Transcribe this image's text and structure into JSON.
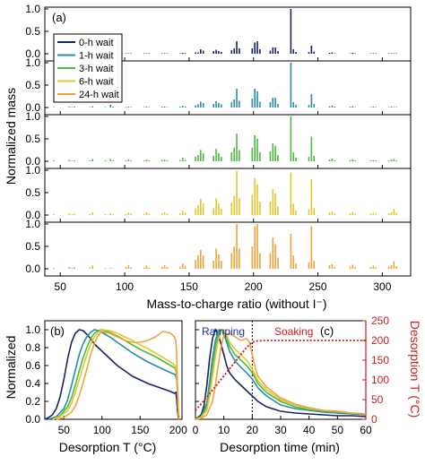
{
  "figure": {
    "panel_a_label": "(a)",
    "panel_b_label": "(b)",
    "panel_c_label": "(c)",
    "a_ylabel": "Normalized mass",
    "a_xlabel": "Mass-to-charge ratio (without I⁻)",
    "b_ylabel": "Normalized",
    "b_xlabel": "Desorption T (°C)",
    "c_xlabel": "Desorption time (min)",
    "c_y2label": "Desorption T (°C)",
    "ramping_label": "Ramping",
    "soaking_label": "Soaking",
    "colors": {
      "0-h wait": "#1a2461",
      "1-h wait": "#2b8cb0",
      "3-h wait": "#4cbb3f",
      "6-h wait": "#e6c62e",
      "24-h wait": "#f2a33a",
      "desorption_T": "#cc1d1d"
    }
  },
  "chart_data": [
    {
      "type": "bar",
      "panel": "(a)",
      "layout": "five stacked spectra sharing x axis",
      "xlabel": "Mass-to-charge ratio (without I⁻)",
      "ylabel": "Normalized mass",
      "xlim": [
        38,
        322
      ],
      "xticks": [
        50,
        100,
        150,
        200,
        250,
        300
      ],
      "ylim": [
        0,
        1.0
      ],
      "yticks": [
        0.0,
        0.5,
        1.0
      ],
      "legend": {
        "placement": "top-left",
        "entries": [
          "0-h wait",
          "1-h wait",
          "3-h wait",
          "6-h wait",
          "24-h wait"
        ]
      },
      "x": [
        45,
        57,
        59,
        61,
        73,
        75,
        85,
        89,
        91,
        101,
        103,
        105,
        115,
        117,
        119,
        129,
        131,
        133,
        143,
        145,
        147,
        155,
        157,
        159,
        161,
        169,
        171,
        173,
        175,
        183,
        185,
        187,
        189,
        199,
        201,
        203,
        205,
        213,
        215,
        217,
        219,
        229,
        231,
        233,
        243,
        245,
        247,
        259,
        261,
        263,
        275,
        277,
        279,
        291,
        293,
        295,
        305,
        307,
        309,
        311
      ],
      "series": [
        {
          "name": "0-h wait",
          "values": [
            0.01,
            0.02,
            0.01,
            0.01,
            0.01,
            0.02,
            0.01,
            0.03,
            0.01,
            0.01,
            0.01,
            0.01,
            0.01,
            0.01,
            0.01,
            0.01,
            0.01,
            0.01,
            0.01,
            0.02,
            0.01,
            0.03,
            0.03,
            0.1,
            0.07,
            0.06,
            0.09,
            0.06,
            0.04,
            0.08,
            0.12,
            0.28,
            0.12,
            0.12,
            0.25,
            0.28,
            0.1,
            0.07,
            0.14,
            0.14,
            0.06,
            1.0,
            0.1,
            0.04,
            0.04,
            0.18,
            0.05,
            0.02,
            0.03,
            0.01,
            0.01,
            0.02,
            0.01,
            0.01,
            0.01,
            0.01,
            0.01,
            0.01,
            0.01,
            0.01
          ]
        },
        {
          "name": "1-h wait",
          "values": [
            0.01,
            0.02,
            0.01,
            0.02,
            0.01,
            0.03,
            0.01,
            0.06,
            0.02,
            0.01,
            0.02,
            0.01,
            0.01,
            0.02,
            0.01,
            0.02,
            0.02,
            0.01,
            0.02,
            0.04,
            0.02,
            0.05,
            0.07,
            0.13,
            0.1,
            0.08,
            0.14,
            0.1,
            0.07,
            0.12,
            0.18,
            0.42,
            0.15,
            0.2,
            0.42,
            0.36,
            0.13,
            0.12,
            0.22,
            0.22,
            0.08,
            1.0,
            0.12,
            0.06,
            0.06,
            0.3,
            0.08,
            0.03,
            0.04,
            0.02,
            0.02,
            0.03,
            0.01,
            0.01,
            0.02,
            0.01,
            0.01,
            0.02,
            0.01,
            0.01
          ]
        },
        {
          "name": "3-h wait",
          "values": [
            0.02,
            0.03,
            0.01,
            0.02,
            0.02,
            0.05,
            0.02,
            0.05,
            0.02,
            0.02,
            0.04,
            0.02,
            0.02,
            0.04,
            0.02,
            0.03,
            0.04,
            0.02,
            0.03,
            0.08,
            0.03,
            0.1,
            0.14,
            0.25,
            0.18,
            0.12,
            0.28,
            0.18,
            0.1,
            0.2,
            0.3,
            0.62,
            0.25,
            0.3,
            0.58,
            0.5,
            0.2,
            0.22,
            0.4,
            0.35,
            0.14,
            1.0,
            0.2,
            0.08,
            0.1,
            0.55,
            0.12,
            0.04,
            0.06,
            0.02,
            0.03,
            0.05,
            0.02,
            0.02,
            0.03,
            0.02,
            0.02,
            0.04,
            0.05,
            0.02
          ]
        },
        {
          "name": "6-h wait",
          "values": [
            0.02,
            0.04,
            0.02,
            0.03,
            0.03,
            0.06,
            0.02,
            0.04,
            0.02,
            0.03,
            0.06,
            0.03,
            0.03,
            0.06,
            0.03,
            0.04,
            0.06,
            0.03,
            0.04,
            0.1,
            0.05,
            0.15,
            0.22,
            0.36,
            0.26,
            0.15,
            0.38,
            0.26,
            0.14,
            0.28,
            0.42,
            0.98,
            0.38,
            0.45,
            0.82,
            0.68,
            0.3,
            0.3,
            0.58,
            0.48,
            0.2,
            0.95,
            0.25,
            0.1,
            0.13,
            0.8,
            0.16,
            0.06,
            0.08,
            0.03,
            0.04,
            0.07,
            0.03,
            0.03,
            0.05,
            0.03,
            0.04,
            0.06,
            0.14,
            0.05
          ]
        },
        {
          "name": "24-h wait",
          "values": [
            0.02,
            0.04,
            0.02,
            0.04,
            0.03,
            0.07,
            0.02,
            0.02,
            0.01,
            0.04,
            0.08,
            0.03,
            0.03,
            0.07,
            0.03,
            0.05,
            0.08,
            0.04,
            0.05,
            0.12,
            0.06,
            0.2,
            0.3,
            0.42,
            0.3,
            0.18,
            0.45,
            0.32,
            0.18,
            0.35,
            0.5,
            1.0,
            0.45,
            0.5,
            0.95,
            1.0,
            0.35,
            0.35,
            0.7,
            0.55,
            0.25,
            0.78,
            0.3,
            0.12,
            0.15,
            0.95,
            0.18,
            0.08,
            0.1,
            0.04,
            0.05,
            0.09,
            0.04,
            0.04,
            0.07,
            0.04,
            0.05,
            0.08,
            0.17,
            0.06
          ]
        }
      ]
    },
    {
      "type": "line",
      "panel": "(b)",
      "xlabel": "Desorption T (°C)",
      "ylabel": "Normalized",
      "xlim": [
        25,
        205
      ],
      "xticks": [
        50,
        100,
        150,
        200
      ],
      "ylim": [
        0,
        1.1
      ],
      "yticks": [
        0.0,
        0.2,
        0.4,
        0.6,
        0.8,
        1.0
      ],
      "series": [
        {
          "name": "0-h wait",
          "x": [
            25,
            30,
            35,
            40,
            45,
            50,
            55,
            60,
            65,
            70,
            75,
            80,
            85,
            90,
            95,
            100,
            110,
            120,
            130,
            140,
            150,
            160,
            170,
            180,
            190,
            195,
            197,
            198,
            199,
            200,
            201
          ],
          "y": [
            0.0,
            0.02,
            0.05,
            0.12,
            0.25,
            0.45,
            0.68,
            0.86,
            0.96,
            1.0,
            0.99,
            0.95,
            0.9,
            0.84,
            0.8,
            0.76,
            0.68,
            0.6,
            0.54,
            0.48,
            0.44,
            0.4,
            0.37,
            0.34,
            0.31,
            0.29,
            0.3,
            0.22,
            0.1,
            0.03,
            0.0
          ]
        },
        {
          "name": "1-h wait",
          "x": [
            30,
            40,
            50,
            55,
            60,
            65,
            70,
            75,
            80,
            85,
            90,
            95,
            100,
            110,
            120,
            130,
            140,
            150,
            160,
            170,
            180,
            190,
            196,
            198,
            199,
            200,
            201
          ],
          "y": [
            0.0,
            0.03,
            0.12,
            0.22,
            0.38,
            0.55,
            0.72,
            0.84,
            0.92,
            0.97,
            1.0,
            0.99,
            0.97,
            0.92,
            0.86,
            0.8,
            0.74,
            0.69,
            0.64,
            0.6,
            0.56,
            0.52,
            0.5,
            0.45,
            0.3,
            0.1,
            0.0
          ]
        },
        {
          "name": "3-h wait",
          "x": [
            35,
            45,
            55,
            60,
            65,
            70,
            75,
            80,
            85,
            90,
            95,
            100,
            110,
            120,
            130,
            140,
            150,
            160,
            170,
            180,
            190,
            196,
            198,
            199,
            200,
            201
          ],
          "y": [
            0.0,
            0.04,
            0.14,
            0.24,
            0.38,
            0.54,
            0.68,
            0.8,
            0.9,
            0.96,
            0.99,
            1.0,
            0.97,
            0.93,
            0.88,
            0.83,
            0.78,
            0.74,
            0.7,
            0.65,
            0.6,
            0.57,
            0.5,
            0.35,
            0.1,
            0.0
          ]
        },
        {
          "name": "6-h wait",
          "x": [
            35,
            45,
            55,
            60,
            65,
            70,
            75,
            80,
            85,
            90,
            95,
            100,
            110,
            120,
            130,
            140,
            150,
            160,
            170,
            180,
            190,
            196,
            198,
            199,
            200,
            201
          ],
          "y": [
            0.0,
            0.03,
            0.1,
            0.18,
            0.3,
            0.44,
            0.58,
            0.72,
            0.84,
            0.92,
            0.97,
            1.0,
            0.99,
            0.96,
            0.92,
            0.88,
            0.83,
            0.79,
            0.74,
            0.69,
            0.64,
            0.6,
            0.52,
            0.36,
            0.1,
            0.0
          ]
        },
        {
          "name": "24-h wait",
          "x": [
            40,
            50,
            60,
            65,
            70,
            75,
            80,
            85,
            90,
            95,
            100,
            110,
            120,
            130,
            140,
            150,
            160,
            170,
            175,
            180,
            185,
            190,
            195,
            197,
            198,
            199,
            200,
            201
          ],
          "y": [
            0.0,
            0.02,
            0.08,
            0.15,
            0.26,
            0.4,
            0.56,
            0.72,
            0.85,
            0.94,
            0.98,
            0.96,
            0.92,
            0.88,
            0.86,
            0.86,
            0.88,
            0.92,
            0.95,
            0.98,
            0.97,
            0.96,
            0.92,
            0.88,
            0.7,
            0.4,
            0.1,
            0.0
          ]
        }
      ]
    },
    {
      "type": "line",
      "panel": "(c)",
      "xlabel": "Desorption time (min)",
      "xlim": [
        0,
        60
      ],
      "xticks": [
        0,
        10,
        20,
        30,
        40,
        50,
        60
      ],
      "ylim": [
        0,
        1.1
      ],
      "yticks": [
        0.0,
        0.2,
        0.4,
        0.6,
        0.8,
        1.0
      ],
      "y2label": "Desorption T (°C)",
      "y2lim": [
        0,
        250
      ],
      "y2ticks": [
        0,
        50,
        100,
        150,
        200,
        250
      ],
      "ramp_end_min": 20,
      "series": [
        {
          "name": "0-h wait",
          "x": [
            0,
            2,
            3,
            4,
            5,
            6,
            7,
            8,
            9,
            10,
            11,
            12,
            14,
            16,
            18,
            20,
            22,
            25,
            30,
            35,
            40,
            45,
            50,
            55,
            60
          ],
          "y": [
            0.0,
            0.05,
            0.15,
            0.38,
            0.68,
            0.9,
            1.0,
            0.95,
            0.84,
            0.72,
            0.6,
            0.52,
            0.44,
            0.38,
            0.32,
            0.26,
            0.2,
            0.14,
            0.09,
            0.07,
            0.06,
            0.05,
            0.04,
            0.04,
            0.03
          ]
        },
        {
          "name": "1-h wait",
          "x": [
            0,
            2,
            4,
            5,
            6,
            7,
            8,
            9,
            10,
            11,
            12,
            14,
            16,
            18,
            20,
            22,
            25,
            30,
            35,
            40,
            45,
            50,
            55,
            60
          ],
          "y": [
            0.0,
            0.03,
            0.18,
            0.42,
            0.68,
            0.88,
            0.98,
            1.0,
            0.95,
            0.86,
            0.76,
            0.65,
            0.58,
            0.52,
            0.45,
            0.35,
            0.26,
            0.16,
            0.12,
            0.1,
            0.08,
            0.07,
            0.06,
            0.05
          ]
        },
        {
          "name": "3-h wait",
          "x": [
            0,
            2,
            4,
            5,
            6,
            7,
            8,
            9,
            10,
            11,
            12,
            14,
            16,
            18,
            20,
            22,
            25,
            30,
            35,
            40,
            45,
            50,
            55,
            60
          ],
          "y": [
            0.0,
            0.03,
            0.14,
            0.34,
            0.58,
            0.8,
            0.94,
            1.0,
            0.98,
            0.9,
            0.82,
            0.72,
            0.66,
            0.6,
            0.52,
            0.4,
            0.3,
            0.2,
            0.14,
            0.11,
            0.09,
            0.08,
            0.07,
            0.06
          ]
        },
        {
          "name": "6-h wait",
          "x": [
            0,
            2,
            4,
            5,
            6,
            7,
            8,
            9,
            10,
            11,
            12,
            14,
            16,
            18,
            20,
            22,
            25,
            30,
            35,
            40,
            45,
            50,
            55,
            60
          ],
          "y": [
            0.0,
            0.02,
            0.1,
            0.26,
            0.48,
            0.7,
            0.88,
            0.97,
            1.0,
            0.94,
            0.86,
            0.78,
            0.72,
            0.66,
            0.56,
            0.43,
            0.33,
            0.22,
            0.16,
            0.12,
            0.1,
            0.09,
            0.07,
            0.06
          ]
        },
        {
          "name": "24-h wait",
          "x": [
            0,
            2,
            4,
            6,
            7,
            8,
            9,
            10,
            12,
            14,
            16,
            18,
            19,
            20,
            21,
            22,
            25,
            30,
            35,
            40,
            45,
            50,
            55,
            60
          ],
          "y": [
            0.0,
            0.01,
            0.05,
            0.2,
            0.38,
            0.6,
            0.8,
            0.94,
            0.96,
            0.92,
            0.88,
            0.9,
            0.86,
            0.72,
            0.58,
            0.48,
            0.36,
            0.24,
            0.17,
            0.13,
            0.1,
            0.09,
            0.07,
            0.06
          ]
        },
        {
          "name": "Desorption T",
          "axis": "y2",
          "x": [
            0,
            5,
            10,
            15,
            18,
            20,
            22,
            25,
            30,
            40,
            50,
            60
          ],
          "y": [
            22,
            65,
            110,
            155,
            182,
            196,
            199,
            200,
            200,
            200,
            200,
            200
          ]
        }
      ]
    }
  ]
}
